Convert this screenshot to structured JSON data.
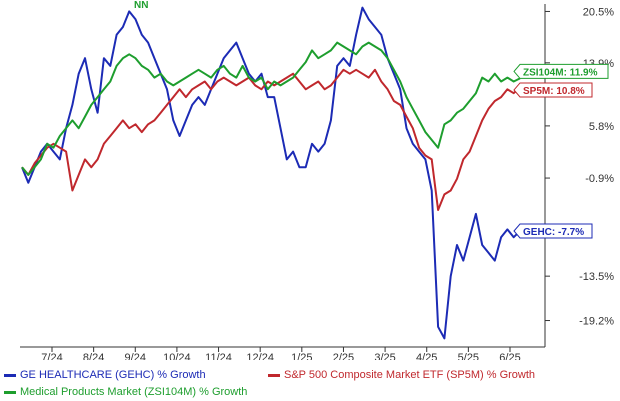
{
  "chart_data": {
    "type": "line",
    "x_ticks": [
      "7/24",
      "8/24",
      "9/24",
      "10/24",
      "11/24",
      "12/24",
      "1/25",
      "2/25",
      "3/25",
      "4/25",
      "5/25",
      "6/25"
    ],
    "y_ticks": [
      "20.5%",
      "13.9%",
      "5.8%",
      "-0.9%",
      "-13.5%",
      "-19.2%"
    ],
    "top_marker": "NN",
    "grid": false,
    "legend_position": "bottom",
    "series": [
      {
        "key": "gehc",
        "name": "GE HEALTHCARE (GEHC) % Growth",
        "end_label": "GEHC: -7.7%",
        "color": "#1c2bb5",
        "values": [
          0.5,
          -1.5,
          0.5,
          2.5,
          3.5,
          2.5,
          1.5,
          5.5,
          8.5,
          12.5,
          14.5,
          10.5,
          7.5,
          14.5,
          13.5,
          17.5,
          18.5,
          20.5,
          19.5,
          17.5,
          16.5,
          14.5,
          12.5,
          10.5,
          6.5,
          4.5,
          6.5,
          8.5,
          9.5,
          8.5,
          10.5,
          12.5,
          14.5,
          15.5,
          16.5,
          14.5,
          12.5,
          11.5,
          12.5,
          9.5,
          9.5,
          5.5,
          1.5,
          2.5,
          0.5,
          0.5,
          3.5,
          2.5,
          3.5,
          6.5,
          13.5,
          14.5,
          13.5,
          17.5,
          21.0,
          19.5,
          18.5,
          17.5,
          14.5,
          12.5,
          10.5,
          5.5,
          3.5,
          2.5,
          1.5,
          -2.5,
          -20.0,
          -21.5,
          -13.5,
          -9.5,
          -11.5,
          -8.5,
          -5.5,
          -9.5,
          -10.5,
          -11.5,
          -8.5,
          -7.5,
          -8.5,
          -7.7
        ]
      },
      {
        "key": "sp5m",
        "name": "S&P 500 Composite Market ETF (SP5M) % Growth",
        "end_label": "SP5M: 10.8%",
        "color": "#c0282d",
        "values": [
          0.5,
          -0.5,
          1.0,
          2.0,
          3.0,
          3.5,
          3.0,
          2.5,
          -2.5,
          -0.5,
          1.5,
          0.5,
          1.5,
          3.5,
          4.5,
          5.5,
          6.5,
          5.5,
          6.0,
          5.0,
          6.0,
          6.5,
          7.5,
          8.5,
          9.5,
          10.5,
          9.5,
          10.5,
          11.0,
          11.5,
          10.5,
          11.5,
          12.0,
          11.5,
          11.0,
          11.5,
          12.0,
          11.0,
          10.5,
          11.5,
          11.0,
          11.5,
          12.0,
          12.5,
          11.5,
          10.5,
          11.0,
          11.5,
          10.5,
          11.0,
          12.0,
          13.0,
          12.5,
          13.0,
          12.5,
          12.0,
          13.0,
          11.5,
          10.5,
          9.0,
          8.5,
          7.0,
          5.5,
          3.0,
          2.0,
          1.5,
          -5.0,
          -3.0,
          -2.5,
          -1.0,
          1.5,
          2.5,
          4.5,
          6.5,
          8.0,
          9.0,
          9.5,
          10.5,
          10.0,
          10.8
        ]
      },
      {
        "key": "zsi",
        "name": "Medical Products Market (ZSI104M) % Growth",
        "end_label": "ZSI104M: 11.9%",
        "color": "#1e9e2e",
        "values": [
          0.5,
          -0.5,
          0.5,
          1.5,
          3.5,
          3.0,
          4.5,
          5.5,
          6.5,
          5.5,
          7.0,
          8.5,
          9.5,
          10.5,
          11.5,
          13.5,
          14.5,
          15.0,
          14.5,
          13.5,
          13.0,
          12.0,
          12.5,
          11.5,
          11.0,
          11.5,
          12.0,
          12.5,
          13.0,
          12.5,
          12.0,
          13.0,
          13.5,
          12.5,
          12.0,
          13.5,
          12.0,
          11.5,
          12.0,
          10.5,
          11.5,
          11.0,
          11.5,
          12.0,
          13.0,
          14.0,
          15.5,
          14.5,
          15.0,
          15.5,
          16.5,
          16.0,
          15.5,
          15.0,
          16.0,
          16.5,
          16.0,
          15.5,
          14.5,
          13.0,
          11.5,
          9.5,
          8.0,
          6.5,
          5.0,
          4.0,
          3.0,
          6.0,
          6.5,
          7.5,
          8.0,
          9.0,
          10.0,
          12.0,
          11.5,
          12.5,
          11.5,
          12.0,
          11.5,
          11.9
        ]
      }
    ],
    "ylim": [
      -21.7,
      21.2
    ]
  }
}
